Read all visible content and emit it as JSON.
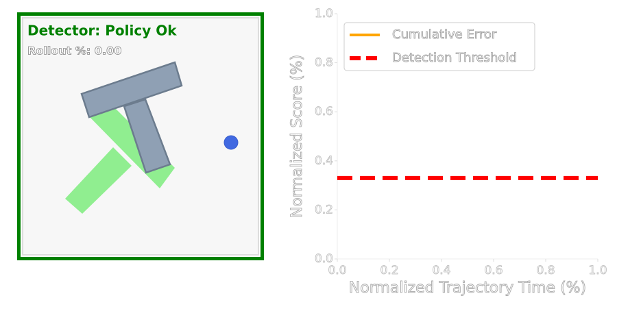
{
  "detector": {
    "status": "Detector: Policy Ok",
    "rollout": "Rollout %: 0.00"
  },
  "chart_data": {
    "type": "line",
    "x_label": "Normalized Trajectory Time (%)",
    "y_label": "Normalized Score (%)",
    "xlim": [
      0,
      1
    ],
    "ylim": [
      0,
      1
    ],
    "xticks": [
      {
        "value": 0,
        "label": "0.0"
      },
      0.2,
      0.4,
      0.6,
      0.8,
      {
        "value": 1,
        "label": "1.0"
      }
    ],
    "yticks": [
      {
        "value": 0,
        "label": "0.0"
      },
      0.2,
      0.4,
      0.6,
      0.8,
      {
        "value": 1,
        "label": "1.0"
      }
    ],
    "legend": "upper left",
    "series": [
      {
        "name": "Cumulative Error",
        "color": "#ffa500",
        "x": [],
        "values": []
      },
      {
        "name": "Detection Threshold",
        "color": "#ff0000",
        "dashed": true,
        "x": [
          0,
          1
        ],
        "values": [
          0.33,
          0.33
        ]
      }
    ]
  }
}
